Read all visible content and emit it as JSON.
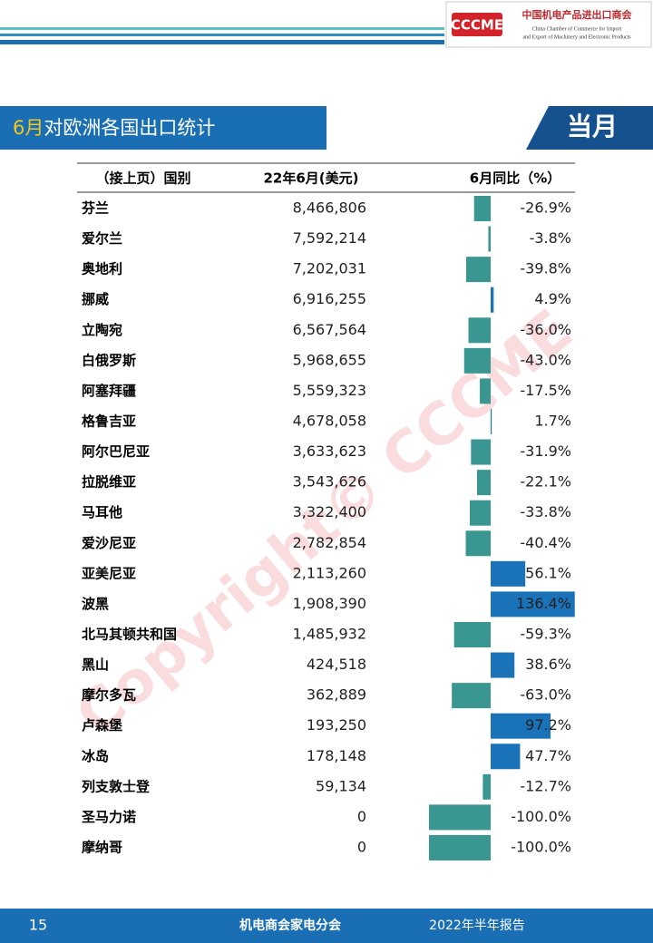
{
  "header": {
    "logo": "CCCME",
    "org_cn": "中国机电产品进出口商会",
    "org_en_1": "China Chamber of Commerce for Import",
    "org_en_2": "and Export of Machinery and Electronic Products"
  },
  "section": {
    "title_highlight": "6月",
    "title": "对欧洲各国出口统计",
    "badge": "当月"
  },
  "watermark": "Copyright© CCCME",
  "table": {
    "headers": [
      "（接上页）国别",
      "22年6月(美元)",
      "6月同比（%）"
    ],
    "rows": [
      {
        "country": "芬兰",
        "exports": "8,466,806",
        "yoy": -26.9,
        "yoy_label": "-26.9%"
      },
      {
        "country": "爱尔兰",
        "exports": "7,592,214",
        "yoy": -3.8,
        "yoy_label": "-3.8%"
      },
      {
        "country": "奥地利",
        "exports": "7,202,031",
        "yoy": -39.8,
        "yoy_label": "-39.8%"
      },
      {
        "country": "挪威",
        "exports": "6,916,255",
        "yoy": 4.9,
        "yoy_label": "4.9%"
      },
      {
        "country": "立陶宛",
        "exports": "6,567,564",
        "yoy": -36.0,
        "yoy_label": "-36.0%"
      },
      {
        "country": "白俄罗斯",
        "exports": "5,968,655",
        "yoy": -43.0,
        "yoy_label": "-43.0%"
      },
      {
        "country": "阿塞拜疆",
        "exports": "5,559,323",
        "yoy": -17.5,
        "yoy_label": "-17.5%"
      },
      {
        "country": "格鲁吉亚",
        "exports": "4,678,058",
        "yoy": 1.7,
        "yoy_label": "1.7%"
      },
      {
        "country": "阿尔巴尼亚",
        "exports": "3,633,623",
        "yoy": -31.9,
        "yoy_label": "-31.9%"
      },
      {
        "country": "拉脱维亚",
        "exports": "3,543,626",
        "yoy": -22.1,
        "yoy_label": "-22.1%"
      },
      {
        "country": "马耳他",
        "exports": "3,322,400",
        "yoy": -33.8,
        "yoy_label": "-33.8%"
      },
      {
        "country": "爱沙尼亚",
        "exports": "2,782,854",
        "yoy": -40.4,
        "yoy_label": "-40.4%"
      },
      {
        "country": "亚美尼亚",
        "exports": "2,113,260",
        "yoy": 56.1,
        "yoy_label": "56.1%"
      },
      {
        "country": "波黑",
        "exports": "1,908,390",
        "yoy": 136.4,
        "yoy_label": "136.4%"
      },
      {
        "country": "北马其顿共和国",
        "exports": "1,485,932",
        "yoy": -59.3,
        "yoy_label": "-59.3%"
      },
      {
        "country": "黑山",
        "exports": "424,518",
        "yoy": 38.6,
        "yoy_label": "38.6%"
      },
      {
        "country": "摩尔多瓦",
        "exports": "362,889",
        "yoy": -63.0,
        "yoy_label": "-63.0%"
      },
      {
        "country": "卢森堡",
        "exports": "193,250",
        "yoy": 97.2,
        "yoy_label": "97.2%"
      },
      {
        "country": "冰岛",
        "exports": "178,148",
        "yoy": 47.7,
        "yoy_label": "47.7%"
      },
      {
        "country": "列支敦士登",
        "exports": "59,134",
        "yoy": -12.7,
        "yoy_label": "-12.7%"
      },
      {
        "country": "圣马力诺",
        "exports": "0",
        "yoy": -100.0,
        "yoy_label": "-100.0%"
      },
      {
        "country": "摩纳哥",
        "exports": "0",
        "yoy": -100.0,
        "yoy_label": "-100.0%"
      }
    ]
  },
  "footer": {
    "page": "15",
    "org": "机电商会家电分会",
    "report": "2022年半年报告"
  }
}
